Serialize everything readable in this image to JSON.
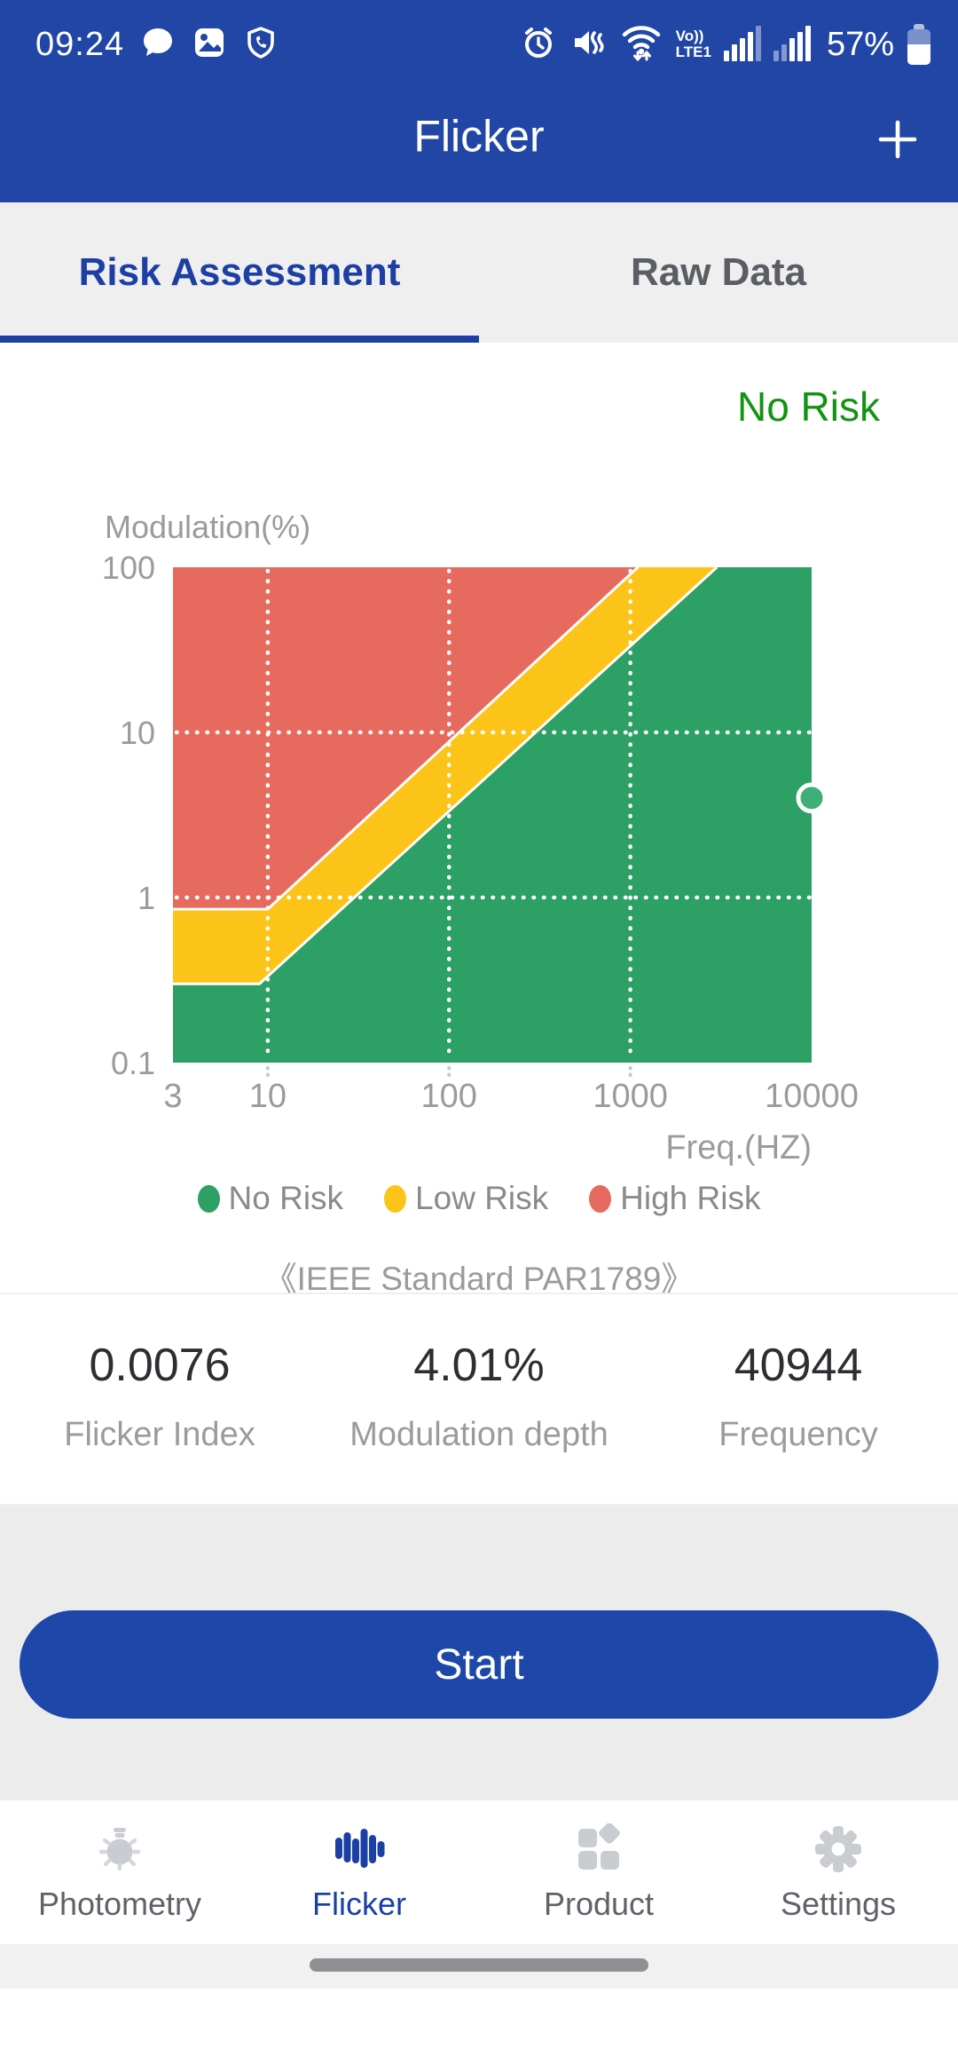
{
  "status_bar": {
    "time": "09:24",
    "battery_percent": "57%",
    "volte_top": "Vo))",
    "volte_bottom": "LTE1"
  },
  "header": {
    "title": "Flicker",
    "add_label": "+"
  },
  "tabs": [
    {
      "label": "Risk Assessment",
      "active": true
    },
    {
      "label": "Raw Data",
      "active": false
    }
  ],
  "risk_status": "No Risk",
  "chart_data": {
    "type": "area",
    "title": "",
    "xlabel": "Freq.(HZ)",
    "ylabel": "Modulation(%)",
    "x_scale": "log",
    "y_scale": "log",
    "xlim": [
      3,
      10000
    ],
    "ylim": [
      0.1,
      100
    ],
    "x_ticks": [
      "3",
      "10",
      "100",
      "1000",
      "10000"
    ],
    "y_ticks": [
      "100",
      "10",
      "1",
      "0.1"
    ],
    "grid_x": [
      10,
      100,
      1000
    ],
    "grid_y": [
      10,
      1
    ],
    "grid_style": "white-dotted",
    "regions": [
      {
        "name": "No Risk",
        "color": "#2ca065"
      },
      {
        "name": "Low Risk",
        "color": "#fcc418",
        "boundary": [
          [
            3,
            0.3
          ],
          [
            9,
            0.3
          ],
          [
            3000,
            100
          ]
        ]
      },
      {
        "name": "High Risk",
        "color": "#e76a5f",
        "boundary": [
          [
            3,
            0.85
          ],
          [
            10,
            0.85
          ],
          [
            1100,
            100
          ]
        ]
      }
    ],
    "point": {
      "x": 40944,
      "y": 4.01,
      "color": "#3fae79"
    },
    "legend": [
      {
        "label": "No Risk",
        "color": "#2ca065"
      },
      {
        "label": "Low Risk",
        "color": "#fcc418"
      },
      {
        "label": "High Risk",
        "color": "#e76a5f"
      }
    ],
    "legend_position": "bottom-center",
    "standard_note": "《IEEE Standard PAR1789》"
  },
  "stats": [
    {
      "value": "0.0076",
      "label": "Flicker Index"
    },
    {
      "value": "4.01%",
      "label": "Modulation depth"
    },
    {
      "value": "40944",
      "label": "Frequency"
    }
  ],
  "action": {
    "start_label": "Start"
  },
  "bottom_nav": {
    "items": [
      {
        "label": "Photometry",
        "active": false
      },
      {
        "label": "Flicker",
        "active": true
      },
      {
        "label": "Product",
        "active": false
      },
      {
        "label": "Settings",
        "active": false
      }
    ]
  },
  "colors": {
    "brand_blue": "#2146a5",
    "active_blue": "#1c3fa5",
    "no_risk_text": "#129312",
    "no_risk_fill": "#2ca065",
    "low_risk_fill": "#fcc418",
    "high_risk_fill": "#e76a5f"
  }
}
